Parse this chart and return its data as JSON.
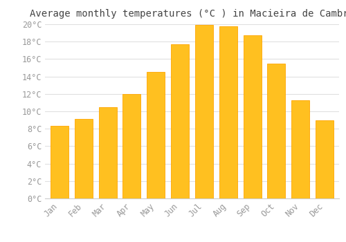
{
  "title": "Average monthly temperatures (°C ) in Macieira de Cambra",
  "months": [
    "Jan",
    "Feb",
    "Mar",
    "Apr",
    "May",
    "Jun",
    "Jul",
    "Aug",
    "Sep",
    "Oct",
    "Nov",
    "Dec"
  ],
  "values": [
    8.3,
    9.1,
    10.5,
    12.0,
    14.5,
    17.7,
    19.9,
    19.8,
    18.7,
    15.5,
    11.3,
    9.0
  ],
  "bar_color": "#FFC020",
  "bar_edge_color": "#FFA500",
  "background_color": "#FFFFFF",
  "grid_color": "#E0E0E0",
  "tick_label_color": "#999999",
  "title_color": "#444444",
  "ylim": [
    0,
    20
  ],
  "ytick_values": [
    0,
    2,
    4,
    6,
    8,
    10,
    12,
    14,
    16,
    18,
    20
  ],
  "title_fontsize": 10,
  "tick_fontsize": 8.5
}
